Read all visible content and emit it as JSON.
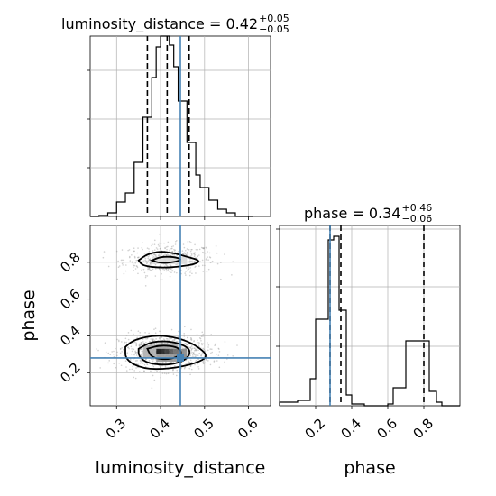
{
  "chart_data": {
    "type": "corner",
    "truth_color": "#4682b4",
    "grid": true,
    "panels": {
      "luminosity_distance_hist": {
        "type": "histogram",
        "title": {
          "text": "luminosity_distance = 0.42",
          "sup": "+0.05",
          "sub": "−0.05"
        },
        "xlim": [
          0.24,
          0.65
        ],
        "ylim": [
          0,
          1.0
        ],
        "bins": [
          {
            "x0": 0.24,
            "x1": 0.26,
            "h": 0.0
          },
          {
            "x0": 0.26,
            "x1": 0.28,
            "h": 0.005
          },
          {
            "x0": 0.28,
            "x1": 0.3,
            "h": 0.02
          },
          {
            "x0": 0.3,
            "x1": 0.32,
            "h": 0.08
          },
          {
            "x0": 0.32,
            "x1": 0.34,
            "h": 0.13
          },
          {
            "x0": 0.34,
            "x1": 0.36,
            "h": 0.3
          },
          {
            "x0": 0.36,
            "x1": 0.38,
            "h": 0.55
          },
          {
            "x0": 0.38,
            "x1": 0.39,
            "h": 0.77
          },
          {
            "x0": 0.39,
            "x1": 0.4,
            "h": 0.94
          },
          {
            "x0": 0.4,
            "x1": 0.42,
            "h": 1.0
          },
          {
            "x0": 0.42,
            "x1": 0.43,
            "h": 0.95
          },
          {
            "x0": 0.43,
            "x1": 0.44,
            "h": 0.83
          },
          {
            "x0": 0.44,
            "x1": 0.45,
            "h": 0.64
          },
          {
            "x0": 0.45,
            "x1": 0.46,
            "h": 0.64
          },
          {
            "x0": 0.46,
            "x1": 0.48,
            "h": 0.41
          },
          {
            "x0": 0.48,
            "x1": 0.49,
            "h": 0.23
          },
          {
            "x0": 0.49,
            "x1": 0.51,
            "h": 0.16
          },
          {
            "x0": 0.51,
            "x1": 0.53,
            "h": 0.09
          },
          {
            "x0": 0.53,
            "x1": 0.55,
            "h": 0.04
          },
          {
            "x0": 0.55,
            "x1": 0.57,
            "h": 0.02
          },
          {
            "x0": 0.57,
            "x1": 0.61,
            "h": 0.0
          }
        ],
        "quantiles": [
          0.37,
          0.415,
          0.465
        ],
        "truth": 0.445
      },
      "phase_hist": {
        "type": "histogram",
        "title": {
          "text": "phase = 0.34",
          "sup": "+0.46",
          "sub": "−0.06"
        },
        "xlim": [
          0.0,
          1.0
        ],
        "ylim": [
          0,
          1.0
        ],
        "bins": [
          {
            "x0": 0.0,
            "x1": 0.1,
            "h": 0.02
          },
          {
            "x0": 0.1,
            "x1": 0.17,
            "h": 0.03
          },
          {
            "x0": 0.17,
            "x1": 0.2,
            "h": 0.15
          },
          {
            "x0": 0.2,
            "x1": 0.27,
            "h": 0.48
          },
          {
            "x0": 0.27,
            "x1": 0.3,
            "h": 0.92
          },
          {
            "x0": 0.3,
            "x1": 0.33,
            "h": 0.94
          },
          {
            "x0": 0.33,
            "x1": 0.37,
            "h": 0.53
          },
          {
            "x0": 0.37,
            "x1": 0.4,
            "h": 0.06
          },
          {
            "x0": 0.4,
            "x1": 0.47,
            "h": 0.01
          },
          {
            "x0": 0.47,
            "x1": 0.6,
            "h": 0.0
          },
          {
            "x0": 0.6,
            "x1": 0.63,
            "h": 0.01
          },
          {
            "x0": 0.63,
            "x1": 0.7,
            "h": 0.1
          },
          {
            "x0": 0.7,
            "x1": 0.73,
            "h": 0.36
          },
          {
            "x0": 0.73,
            "x1": 0.83,
            "h": 0.36
          },
          {
            "x0": 0.83,
            "x1": 0.87,
            "h": 0.08
          },
          {
            "x0": 0.87,
            "x1": 0.9,
            "h": 0.02
          },
          {
            "x0": 0.9,
            "x1": 1.0,
            "h": 0.0
          }
        ],
        "quantiles": [
          0.28,
          0.34,
          0.8
        ],
        "truth": 0.28
      },
      "joint": {
        "type": "2d-histogram-contour",
        "xlim": [
          0.24,
          0.65
        ],
        "ylim": [
          0.02,
          1.0
        ],
        "truth": {
          "x": 0.445,
          "y": 0.28
        },
        "upper_mode": {
          "cx": 0.42,
          "cy": 0.815,
          "sx": 0.04,
          "sy": 0.035,
          "weight": 0.35
        },
        "lower_mode": {
          "cx": 0.41,
          "cy": 0.31,
          "sx": 0.04,
          "sy": 0.04,
          "weight": 0.65
        },
        "contours": [
          {
            "mode": "upper",
            "level": 1,
            "points": [
              [
                0.35,
                0.81
              ],
              [
                0.37,
                0.845
              ],
              [
                0.4,
                0.86
              ],
              [
                0.43,
                0.85
              ],
              [
                0.46,
                0.83
              ],
              [
                0.49,
                0.81
              ],
              [
                0.48,
                0.79
              ],
              [
                0.44,
                0.775
              ],
              [
                0.4,
                0.77
              ],
              [
                0.36,
                0.78
              ]
            ]
          },
          {
            "mode": "upper",
            "level": 2,
            "points": [
              [
                0.38,
                0.81
              ],
              [
                0.4,
                0.83
              ],
              [
                0.43,
                0.83
              ],
              [
                0.45,
                0.815
              ],
              [
                0.43,
                0.8
              ],
              [
                0.4,
                0.795
              ]
            ]
          },
          {
            "mode": "lower",
            "level": 1,
            "points": [
              [
                0.32,
                0.34
              ],
              [
                0.34,
                0.38
              ],
              [
                0.39,
                0.405
              ],
              [
                0.44,
                0.39
              ],
              [
                0.48,
                0.35
              ],
              [
                0.51,
                0.29
              ],
              [
                0.48,
                0.25
              ],
              [
                0.42,
                0.22
              ],
              [
                0.36,
                0.22
              ],
              [
                0.32,
                0.27
              ]
            ]
          },
          {
            "mode": "lower",
            "level": 2,
            "points": [
              [
                0.35,
                0.33
              ],
              [
                0.38,
                0.37
              ],
              [
                0.43,
                0.37
              ],
              [
                0.47,
                0.33
              ],
              [
                0.46,
                0.27
              ],
              [
                0.42,
                0.24
              ],
              [
                0.37,
                0.25
              ],
              [
                0.35,
                0.29
              ]
            ]
          },
          {
            "mode": "lower",
            "level": 3,
            "points": [
              [
                0.37,
                0.33
              ],
              [
                0.4,
                0.35
              ],
              [
                0.44,
                0.34
              ],
              [
                0.45,
                0.3
              ],
              [
                0.42,
                0.27
              ],
              [
                0.38,
                0.28
              ]
            ]
          }
        ],
        "density_cells": [
          {
            "x0": 0.39,
            "x1": 0.4,
            "y0": 0.3,
            "y1": 0.33,
            "shade": "#111111"
          },
          {
            "x0": 0.4,
            "x1": 0.41,
            "y0": 0.3,
            "y1": 0.33,
            "shade": "#1e1e1e"
          },
          {
            "x0": 0.41,
            "x1": 0.42,
            "y0": 0.3,
            "y1": 0.33,
            "shade": "#333333"
          },
          {
            "x0": 0.42,
            "x1": 0.43,
            "y0": 0.3,
            "y1": 0.33,
            "shade": "#555555"
          },
          {
            "x0": 0.43,
            "x1": 0.445,
            "y0": 0.28,
            "y1": 0.33,
            "shade": "#6a6a6a"
          },
          {
            "x0": 0.445,
            "x1": 0.46,
            "y0": 0.28,
            "y1": 0.33,
            "shade": "#888888"
          },
          {
            "x0": 0.36,
            "x1": 0.39,
            "y0": 0.28,
            "y1": 0.35,
            "shade": "#b0b0b0"
          },
          {
            "x0": 0.39,
            "x1": 0.44,
            "y0": 0.26,
            "y1": 0.3,
            "shade": "#9a9a9a"
          },
          {
            "x0": 0.39,
            "x1": 0.44,
            "y0": 0.33,
            "y1": 0.36,
            "shade": "#a8a8a8"
          },
          {
            "x0": 0.38,
            "x1": 0.46,
            "y0": 0.79,
            "y1": 0.83,
            "shade": "#dcdcdc"
          }
        ]
      }
    },
    "x_ticks": {
      "luminosity_distance": [
        0.3,
        0.4,
        0.5,
        0.6
      ],
      "phase": [
        0.2,
        0.4,
        0.6,
        0.8
      ]
    },
    "y_ticks": {
      "phase": [
        0.2,
        0.4,
        0.6,
        0.8
      ]
    },
    "xlabels": {
      "luminosity_distance": "luminosity_distance",
      "phase": "phase"
    },
    "ylabels": {
      "phase": "phase"
    }
  }
}
